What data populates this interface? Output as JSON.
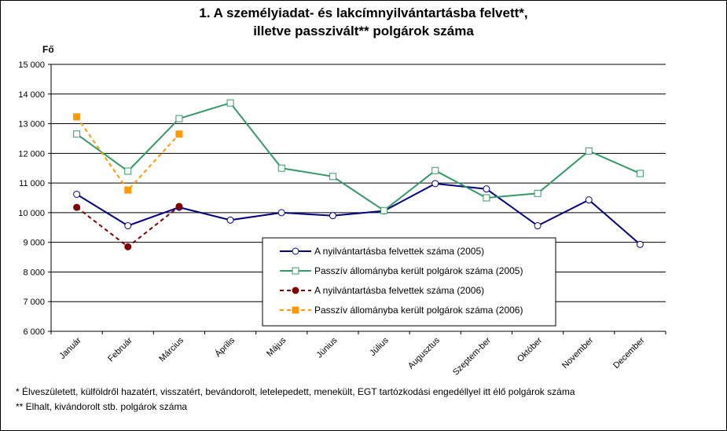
{
  "header": {
    "title_line1": "1. A személyiadat- és lakcímnyilvántartásba felvett*,",
    "title_line2": "illetve passzivált** polgárok száma"
  },
  "footnotes": {
    "note1": "* Élveszületett, külföldről hazatért, visszatért, bevándorolt, letelepedett, menekült, EGT tartózkodási engedéllyel itt élő  polgárok száma",
    "note2": "** Elhalt, kivándorolt stb. polgárok száma"
  },
  "chart_data": {
    "type": "line",
    "ylabel": "Fő",
    "ylim": [
      6000,
      15000
    ],
    "yticks": [
      6000,
      7000,
      8000,
      9000,
      10000,
      11000,
      12000,
      13000,
      14000,
      15000
    ],
    "ytick_labels": [
      "6 000",
      "7 000",
      "8 000",
      "9 000",
      "10 000",
      "11 000",
      "12 000",
      "13 000",
      "14 000",
      "15 000"
    ],
    "grid": "horizontal",
    "legend_position": "bottom-center inside plot",
    "categories": [
      "Január",
      "Február",
      "Március",
      "Április",
      "Május",
      "Június",
      "Július",
      "Augusztus",
      "Szeptem-ber",
      "Október",
      "November",
      "December"
    ],
    "series": [
      {
        "name": "A nyilvántartásba felvettek száma (2005)",
        "color": "#000080",
        "marker": "circle-open",
        "dash": "solid",
        "values": [
          10620,
          9560,
          10180,
          9750,
          10000,
          9900,
          10060,
          10980,
          10800,
          9560,
          10430,
          8930
        ]
      },
      {
        "name": "Passzív állományba került polgárok száma (2005)",
        "color": "#339966",
        "marker": "square-open",
        "dash": "solid",
        "values": [
          12650,
          11400,
          13170,
          13700,
          11500,
          11220,
          10070,
          11420,
          10500,
          10650,
          12080,
          11320
        ]
      },
      {
        "name": "A nyilvántartásba felvettek száma (2006)",
        "color": "#800000",
        "marker": "circle-filled",
        "dash": "dashed",
        "values": [
          10180,
          8850,
          10210,
          null,
          null,
          null,
          null,
          null,
          null,
          null,
          null,
          null
        ]
      },
      {
        "name": "Passzív állományba került polgárok száma (2006)",
        "color": "#FF9900",
        "marker": "square-filled",
        "dash": "dashed",
        "values": [
          13230,
          10760,
          12650,
          null,
          null,
          null,
          null,
          null,
          null,
          null,
          null,
          null
        ]
      }
    ]
  }
}
